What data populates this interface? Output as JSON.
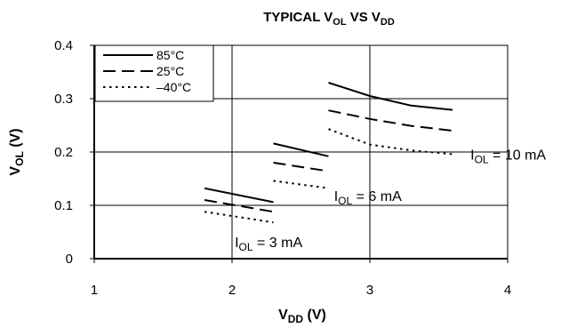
{
  "chart_data": {
    "type": "line",
    "title": {
      "main": "TYPICAL V",
      "sub1": "OL",
      "mid": " VS V",
      "sub2": "DD"
    },
    "xlabel": {
      "main": "V",
      "sub": "DD",
      "rest": " (V)"
    },
    "ylabel": {
      "main": "V",
      "sub": "OL",
      "rest": " (V)"
    },
    "xlim": [
      1,
      4
    ],
    "ylim": [
      0,
      0.4
    ],
    "x_ticks": [
      "1",
      "2",
      "3",
      "4"
    ],
    "y_ticks": [
      "0",
      "0.1",
      "0.2",
      "0.3",
      "0.4"
    ],
    "grid": true,
    "legend_position": "top-left",
    "legend": [
      {
        "label": "85°C",
        "style": "solid"
      },
      {
        "label": "25°C",
        "style": "dashed"
      },
      {
        "label": "–40°C",
        "style": "dotted"
      }
    ],
    "groups": [
      {
        "label": {
          "pre": "I",
          "sub": "OL",
          "post": " = 3 mA"
        },
        "series": [
          {
            "style": "solid",
            "x": [
              1.8,
              2.3
            ],
            "y": [
              0.132,
              0.106
            ]
          },
          {
            "style": "dashed",
            "x": [
              1.8,
              2.3
            ],
            "y": [
              0.11,
              0.088
            ]
          },
          {
            "style": "dotted",
            "x": [
              1.8,
              2.3
            ],
            "y": [
              0.088,
              0.068
            ]
          }
        ]
      },
      {
        "label": {
          "pre": "I",
          "sub": "OL",
          "post": " = 6 mA"
        },
        "series": [
          {
            "style": "solid",
            "x": [
              2.3,
              2.7
            ],
            "y": [
              0.216,
              0.192
            ]
          },
          {
            "style": "dashed",
            "x": [
              2.3,
              2.7
            ],
            "y": [
              0.18,
              0.164
            ]
          },
          {
            "style": "dotted",
            "x": [
              2.3,
              2.7
            ],
            "y": [
              0.146,
              0.132
            ]
          }
        ]
      },
      {
        "label": {
          "pre": "I",
          "sub": "OL",
          "post": " = 10 mA"
        },
        "series": [
          {
            "style": "solid",
            "x": [
              2.7,
              3.0,
              3.3,
              3.6
            ],
            "y": [
              0.33,
              0.305,
              0.287,
              0.279
            ]
          },
          {
            "style": "dashed",
            "x": [
              2.7,
              3.0,
              3.3,
              3.6
            ],
            "y": [
              0.278,
              0.262,
              0.249,
              0.24
            ]
          },
          {
            "style": "dotted",
            "x": [
              2.7,
              3.0,
              3.3,
              3.6
            ],
            "y": [
              0.243,
              0.214,
              0.203,
              0.196
            ]
          }
        ]
      }
    ]
  }
}
